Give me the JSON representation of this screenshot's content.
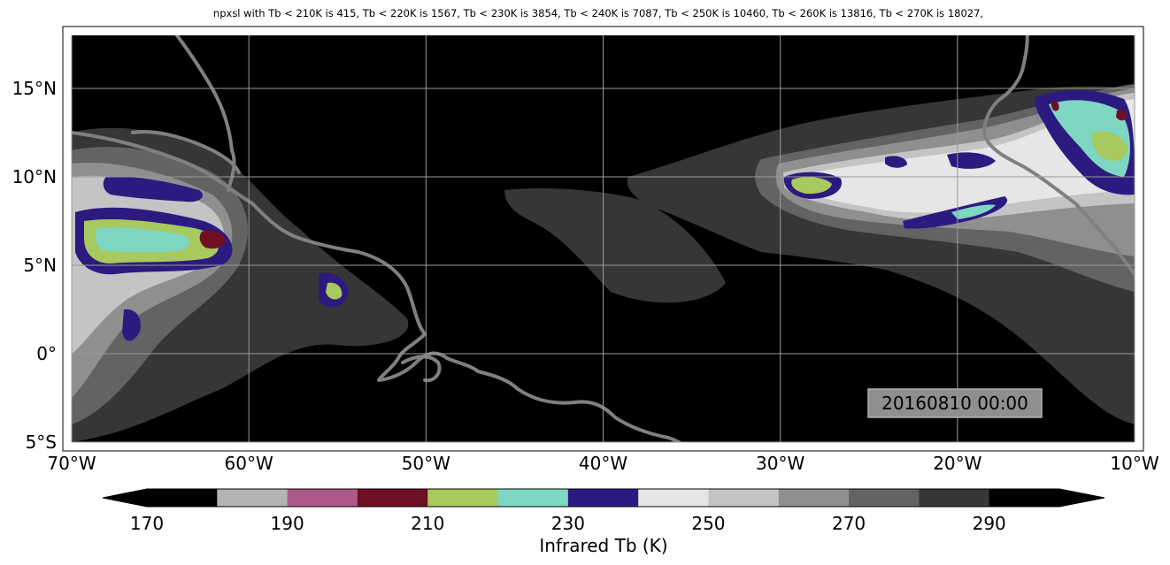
{
  "title": "npxsl with Tb < 210K is 415,  Tb < 220K is 1567,  Tb < 230K is 3854,  Tb < 240K is 7087,  Tb < 250K is 10460,  Tb < 260K is 13816,  Tb < 270K is 18027,",
  "timestamp": "20160810 00:00",
  "map": {
    "lon_range": [
      -70,
      -10
    ],
    "lat_range": [
      -5,
      18
    ],
    "lat_ticks": [
      {
        "value": 15,
        "label": "15°N"
      },
      {
        "value": 10,
        "label": "10°N"
      },
      {
        "value": 5,
        "label": "5°N"
      },
      {
        "value": 0,
        "label": "0°"
      },
      {
        "value": -5,
        "label": "5°S"
      }
    ],
    "lon_ticks": [
      {
        "value": -70,
        "label": "70°W"
      },
      {
        "value": -60,
        "label": "60°W"
      },
      {
        "value": -50,
        "label": "50°W"
      },
      {
        "value": -40,
        "label": "40°W"
      },
      {
        "value": -30,
        "label": "30°W"
      },
      {
        "value": -20,
        "label": "20°W"
      },
      {
        "value": -10,
        "label": "10°W"
      }
    ],
    "grid": true,
    "background_color": "#000000",
    "coastline_color": "#808080"
  },
  "colorbar": {
    "label": "Infrared Tb (K)",
    "bins": [
      170,
      180,
      190,
      200,
      210,
      220,
      230,
      240,
      250,
      260,
      270,
      280,
      290,
      300
    ],
    "colors": [
      "#000000",
      "#b3b3b3",
      "#ad5a8a",
      "#6e0f24",
      "#a7c95e",
      "#7dd7c2",
      "#2c1a80",
      "#e6e6e6",
      "#c4c4c4",
      "#8f8f8f",
      "#636363",
      "#363636",
      "#000000"
    ],
    "tick_labels": [
      "170",
      "190",
      "210",
      "230",
      "250",
      "270",
      "290"
    ],
    "tick_values": [
      170,
      190,
      210,
      230,
      250,
      270,
      290
    ],
    "extend": "both"
  }
}
